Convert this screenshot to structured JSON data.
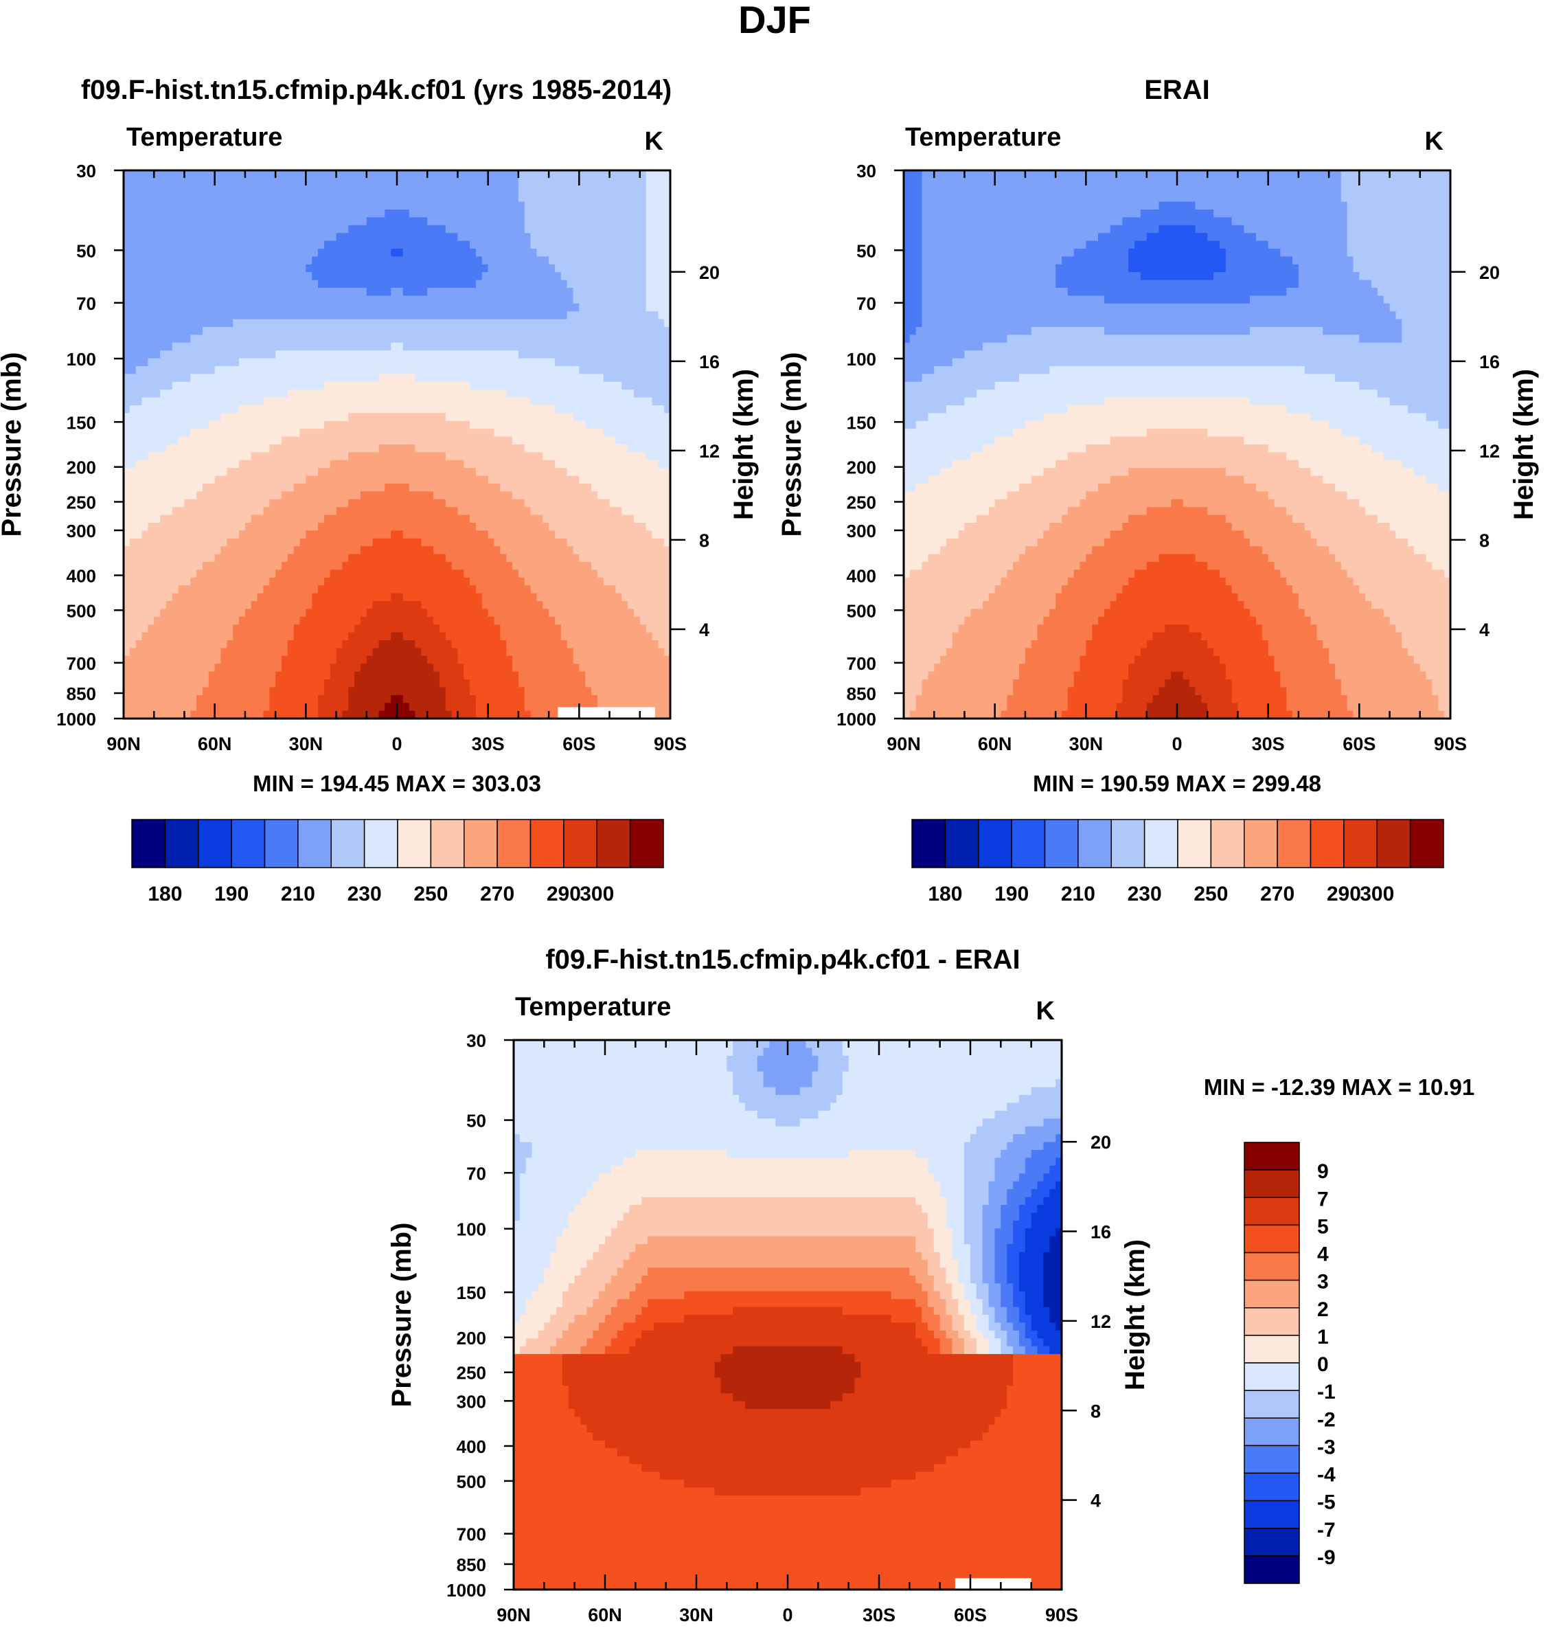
{
  "figure": {
    "title": "DJF"
  },
  "chart_data": [
    {
      "type": "contour",
      "title": "f09.F-hist.tn15.cfmip.p4k.cf01 (yrs 1985-2014)",
      "subtitle_left": "Temperature",
      "subtitle_right": "K",
      "xlabel": "",
      "ylabel": "Pressure (mb)",
      "ylabel_right": "Height (km)",
      "x_ticks": [
        "90N",
        "60N",
        "30N",
        "0",
        "30S",
        "60S",
        "90S"
      ],
      "y_ticks": [
        "30",
        "50",
        "70",
        "100",
        "150",
        "200",
        "250",
        "300",
        "400",
        "500",
        "700",
        "850",
        "1000"
      ],
      "height_ticks": [
        "20",
        "16",
        "12",
        "8",
        "4"
      ],
      "stats": "MIN = 194.45  MAX = 303.03",
      "min": 194.45,
      "max": 303.03,
      "colorbar_labels": [
        "180",
        "190",
        "210",
        "230",
        "250",
        "270",
        "290",
        "300"
      ]
    },
    {
      "type": "contour",
      "title": "ERAI",
      "subtitle_left": "Temperature",
      "subtitle_right": "K",
      "xlabel": "",
      "ylabel": "Pressure (mb)",
      "ylabel_right": "Height (km)",
      "x_ticks": [
        "90N",
        "60N",
        "30N",
        "0",
        "30S",
        "60S",
        "90S"
      ],
      "y_ticks": [
        "30",
        "50",
        "70",
        "100",
        "150",
        "200",
        "250",
        "300",
        "400",
        "500",
        "700",
        "850",
        "1000"
      ],
      "height_ticks": [
        "20",
        "16",
        "12",
        "8",
        "4"
      ],
      "stats": "MIN = 190.59  MAX = 299.48",
      "min": 190.59,
      "max": 299.48,
      "colorbar_labels": [
        "180",
        "190",
        "210",
        "230",
        "250",
        "270",
        "290",
        "300"
      ]
    },
    {
      "type": "contour",
      "title": "f09.F-hist.tn15.cfmip.p4k.cf01 - ERAI",
      "subtitle_left": "Temperature",
      "subtitle_right": "K",
      "xlabel": "",
      "ylabel": "Pressure (mb)",
      "ylabel_right": "Height (km)",
      "x_ticks": [
        "90N",
        "60N",
        "30N",
        "0",
        "30S",
        "60S",
        "90S"
      ],
      "y_ticks": [
        "30",
        "50",
        "70",
        "100",
        "150",
        "200",
        "250",
        "300",
        "400",
        "500",
        "700",
        "850",
        "1000"
      ],
      "height_ticks": [
        "20",
        "16",
        "12",
        "8",
        "4"
      ],
      "stats": "MIN = -12.39  MAX =  10.91",
      "min": -12.39,
      "max": 10.91,
      "colorbar_labels": [
        "9",
        "7",
        "5",
        "4",
        "3",
        "2",
        "1",
        "0",
        "-1",
        "-2",
        "-3",
        "-4",
        "-5",
        "-7",
        "-9"
      ]
    }
  ],
  "colors": {
    "abs_scale": [
      "#00007f",
      "#0020b0",
      "#0a3be0",
      "#2458f5",
      "#4a7af5",
      "#7ea2fa",
      "#afc8fc",
      "#d9e8fe",
      "#fde9dc",
      "#fcc7ae",
      "#fba47e",
      "#f9794a",
      "#f4511f",
      "#de3a12",
      "#b52509",
      "#870000"
    ],
    "diff_scale": [
      "#870000",
      "#b52509",
      "#de3a12",
      "#f4511f",
      "#f9794a",
      "#fba47e",
      "#fcc7ae",
      "#fde9dc",
      "#d9e8fe",
      "#afc8fc",
      "#7ea2fa",
      "#4a7af5",
      "#2458f5",
      "#0a3be0",
      "#0020b0",
      "#00007f"
    ]
  }
}
